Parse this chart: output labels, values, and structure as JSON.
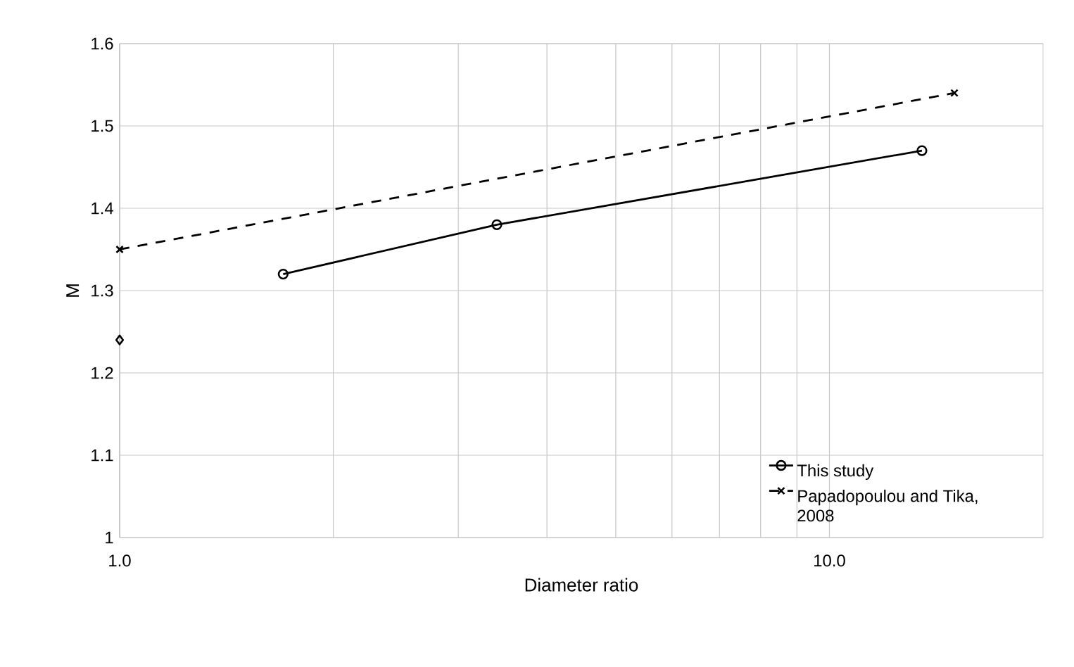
{
  "chart_data": {
    "type": "line",
    "xlabel": "Diameter ratio",
    "ylabel": "M",
    "log": "x",
    "grid": true,
    "legend": "bottom right",
    "xlim": [
      1,
      20
    ],
    "xticks": [
      {
        "value": 1,
        "label": "1.0"
      },
      {
        "value": 10,
        "label": "10.0"
      }
    ],
    "ylim": [
      1,
      1.6
    ],
    "yticks": [
      1,
      1.1,
      1.2,
      1.3,
      1.4,
      1.5,
      1.6
    ],
    "series": [
      {
        "name": "This study",
        "color": "#000000",
        "x": [
          1.7,
          3.4,
          13.5
        ],
        "values": [
          1.32,
          1.38,
          1.47
        ],
        "marker": "circle",
        "line_style": "solid"
      },
      {
        "name": "Papadopoulou and Tika, 2008",
        "color": "#000000",
        "x": [
          1,
          15
        ],
        "values": [
          1.35,
          1.54
        ],
        "marker": "cross",
        "line_style": "dashed"
      },
      {
        "type": "scatter",
        "color": "#000000",
        "x": [
          1
        ],
        "values": [
          1.24
        ],
        "marker": "diamond"
      }
    ]
  }
}
